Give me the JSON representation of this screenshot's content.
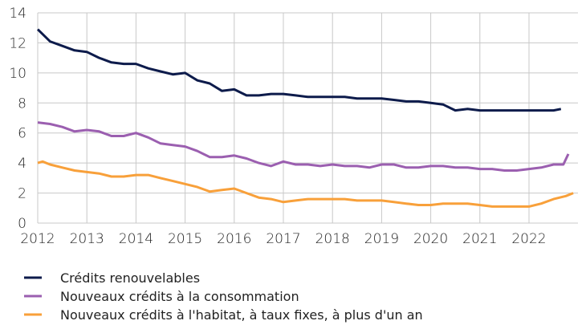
{
  "chart_data": {
    "type": "line",
    "title": "",
    "xlabel": "",
    "ylabel": "",
    "xlim": [
      2012,
      2023
    ],
    "ylim": [
      0,
      14
    ],
    "grid": true,
    "legend_placement": "bottom",
    "x_ticks": [
      "2012",
      "2013",
      "2014",
      "2015",
      "2016",
      "2017",
      "2018",
      "2019",
      "2020",
      "2021",
      "2022"
    ],
    "y_ticks": [
      "0",
      "2",
      "4",
      "6",
      "8",
      "10",
      "12",
      "14"
    ],
    "series": [
      {
        "name": "Crédits renouvelables",
        "color": "#0d1b4b",
        "x": [
          2012,
          2012.25,
          2012.5,
          2012.75,
          2013,
          2013.25,
          2013.5,
          2013.75,
          2014,
          2014.25,
          2014.5,
          2014.75,
          2015,
          2015.25,
          2015.5,
          2015.75,
          2016,
          2016.25,
          2016.5,
          2016.75,
          2017,
          2017.25,
          2017.5,
          2017.75,
          2018,
          2018.25,
          2018.5,
          2018.75,
          2019,
          2019.25,
          2019.5,
          2019.75,
          2020,
          2020.25,
          2020.5,
          2020.75,
          2021,
          2021.25,
          2021.5,
          2021.75,
          2022,
          2022.25,
          2022.5,
          2022.65
        ],
        "y": [
          12.9,
          12.1,
          11.8,
          11.5,
          11.4,
          11.0,
          10.7,
          10.6,
          10.6,
          10.3,
          10.1,
          9.9,
          10.0,
          9.5,
          9.3,
          8.8,
          8.9,
          8.5,
          8.5,
          8.6,
          8.6,
          8.5,
          8.4,
          8.4,
          8.4,
          8.4,
          8.3,
          8.3,
          8.3,
          8.2,
          8.1,
          8.1,
          8.0,
          7.9,
          7.5,
          7.6,
          7.5,
          7.5,
          7.5,
          7.5,
          7.5,
          7.5,
          7.5,
          7.6
        ]
      },
      {
        "name": "Nouveaux crédits à la consommation",
        "color": "#9b5fb0",
        "x": [
          2012,
          2012.25,
          2012.5,
          2012.75,
          2013,
          2013.25,
          2013.5,
          2013.75,
          2014,
          2014.25,
          2014.5,
          2014.75,
          2015,
          2015.25,
          2015.5,
          2015.75,
          2016,
          2016.25,
          2016.5,
          2016.75,
          2017,
          2017.25,
          2017.5,
          2017.75,
          2018,
          2018.25,
          2018.5,
          2018.75,
          2019,
          2019.25,
          2019.5,
          2019.75,
          2020,
          2020.25,
          2020.5,
          2020.75,
          2021,
          2021.25,
          2021.5,
          2021.75,
          2022,
          2022.25,
          2022.5,
          2022.7,
          2022.8
        ],
        "y": [
          6.7,
          6.6,
          6.4,
          6.1,
          6.2,
          6.1,
          5.8,
          5.8,
          6.0,
          5.7,
          5.3,
          5.2,
          5.1,
          4.8,
          4.4,
          4.4,
          4.5,
          4.3,
          4.0,
          3.8,
          4.1,
          3.9,
          3.9,
          3.8,
          3.9,
          3.8,
          3.8,
          3.7,
          3.9,
          3.9,
          3.7,
          3.7,
          3.8,
          3.8,
          3.7,
          3.7,
          3.6,
          3.6,
          3.5,
          3.5,
          3.6,
          3.7,
          3.9,
          3.9,
          4.6
        ]
      },
      {
        "name": "Nouveaux crédits à l'habitat, à taux fixes, à plus d'un an",
        "color": "#f8a03a",
        "x": [
          2012,
          2012.1,
          2012.25,
          2012.5,
          2012.75,
          2013,
          2013.25,
          2013.5,
          2013.75,
          2014,
          2014.25,
          2014.5,
          2014.75,
          2015,
          2015.25,
          2015.5,
          2015.75,
          2016,
          2016.25,
          2016.5,
          2016.75,
          2017,
          2017.25,
          2017.5,
          2017.75,
          2018,
          2018.25,
          2018.5,
          2018.75,
          2019,
          2019.25,
          2019.5,
          2019.75,
          2020,
          2020.25,
          2020.5,
          2020.75,
          2021,
          2021.25,
          2021.5,
          2021.75,
          2022,
          2022.25,
          2022.5,
          2022.75,
          2022.9
        ],
        "y": [
          4.0,
          4.1,
          3.9,
          3.7,
          3.5,
          3.4,
          3.3,
          3.1,
          3.1,
          3.2,
          3.2,
          3.0,
          2.8,
          2.6,
          2.4,
          2.1,
          2.2,
          2.3,
          2.0,
          1.7,
          1.6,
          1.4,
          1.5,
          1.6,
          1.6,
          1.6,
          1.6,
          1.5,
          1.5,
          1.5,
          1.4,
          1.3,
          1.2,
          1.2,
          1.3,
          1.3,
          1.3,
          1.2,
          1.1,
          1.1,
          1.1,
          1.1,
          1.3,
          1.6,
          1.8,
          2.0
        ]
      }
    ]
  }
}
